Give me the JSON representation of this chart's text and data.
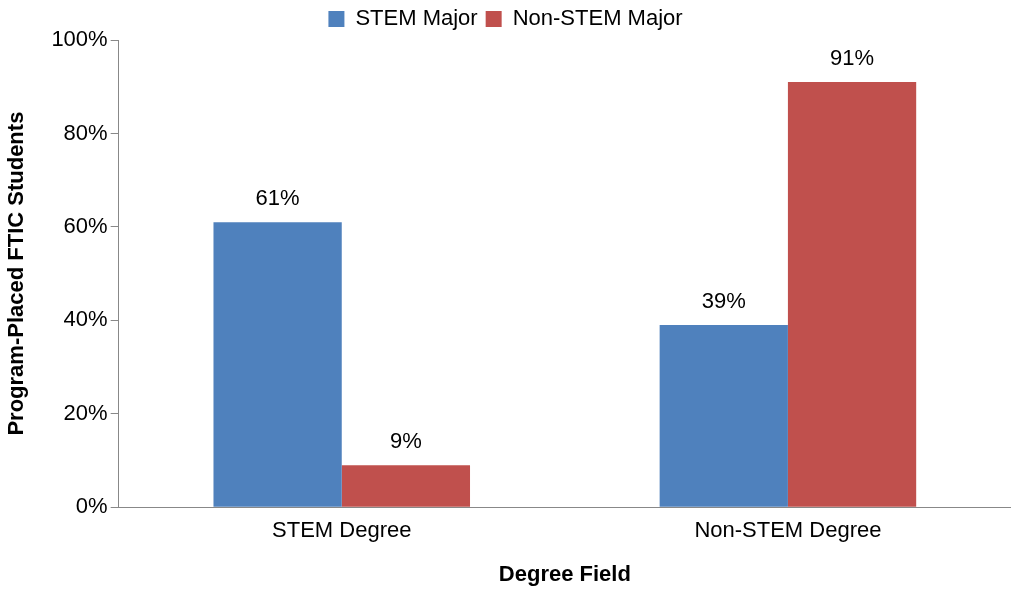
{
  "chart_data": {
    "type": "bar",
    "xlabel": "Degree Field",
    "ylabel": "Program-Placed FTIC Students",
    "categories": [
      "STEM Degree",
      "Non-STEM Degree"
    ],
    "series": [
      {
        "name": "STEM Major",
        "color": "#4f81bd",
        "values": [
          61,
          39
        ],
        "value_labels": [
          "61%",
          "39%"
        ]
      },
      {
        "name": "Non-STEM Major",
        "color": "#c0504d",
        "values": [
          9,
          91
        ],
        "value_labels": [
          "9%",
          "91%"
        ]
      }
    ],
    "ylim": [
      0,
      100
    ],
    "yticks": [
      {
        "value": 0,
        "label": "0%"
      },
      {
        "value": 20,
        "label": "20%"
      },
      {
        "value": 40,
        "label": "40%"
      },
      {
        "value": 60,
        "label": "60%"
      },
      {
        "value": 80,
        "label": "80%"
      },
      {
        "value": 100,
        "label": "100%"
      }
    ],
    "grid": false,
    "legend": "top"
  }
}
